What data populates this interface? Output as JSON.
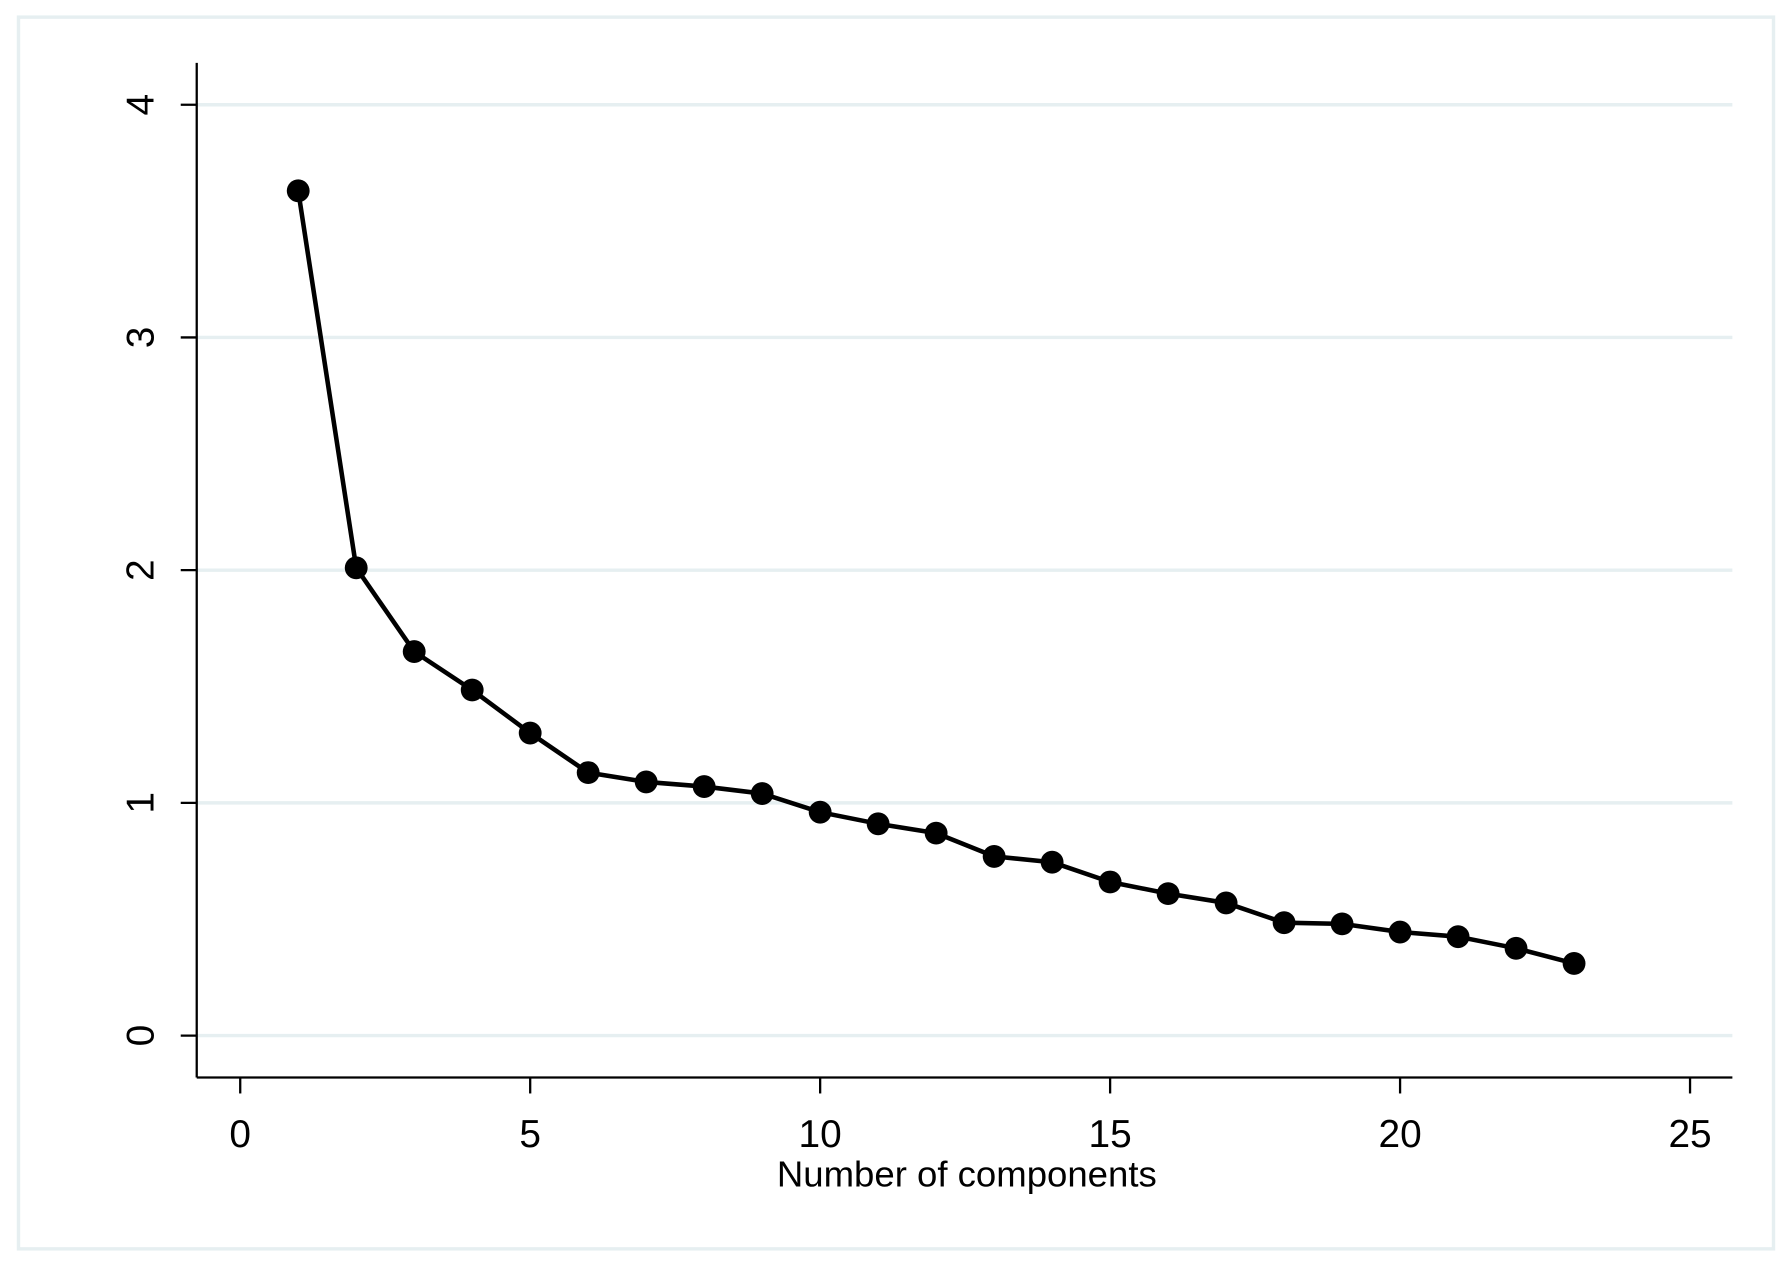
{
  "chart_data": {
    "type": "line",
    "x_label": "Number of components",
    "x": [
      1,
      2,
      3,
      4,
      5,
      6,
      7,
      8,
      9,
      10,
      11,
      12,
      13,
      14,
      15,
      16,
      17,
      18,
      19,
      20,
      21,
      22,
      23
    ],
    "values": [
      3.63,
      2.01,
      1.65,
      1.485,
      1.3,
      1.13,
      1.09,
      1.07,
      1.04,
      0.96,
      0.91,
      0.87,
      0.77,
      0.745,
      0.66,
      0.61,
      0.57,
      0.485,
      0.48,
      0.445,
      0.425,
      0.375,
      0.31
    ],
    "color": "#000000",
    "markers": true,
    "xlim": [
      -0.75,
      25.73
    ],
    "xticks": [
      0,
      5,
      10,
      15,
      20,
      25
    ],
    "ylim": [
      -0.18,
      4.18
    ],
    "yticks": [
      0,
      1,
      2,
      3,
      4
    ],
    "grid": true,
    "grid_color": "#e6eff1"
  }
}
